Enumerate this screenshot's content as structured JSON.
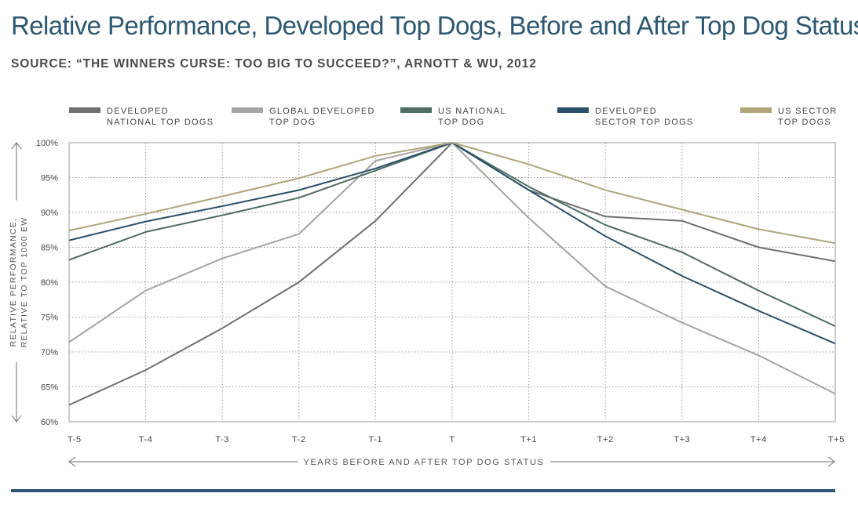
{
  "title": "Relative Performance, Developed Top Dogs, Before and After Top Dog Status",
  "subtitle": "SOURCE: “THE WINNERS CURSE: TOO BIG TO SUCCEED?”, ARNOTT & WU, 2012",
  "colors": {
    "developed_national": "#6f6f6f",
    "global_developed": "#a4a4a2",
    "us_national": "#4e6e62",
    "developed_sector": "#2a506c",
    "us_sector": "#b0a57a",
    "bottom_rule": "#2c5873"
  },
  "chart_data": {
    "type": "line",
    "x": [
      "T-5",
      "T-4",
      "T-3",
      "T-2",
      "T-1",
      "T",
      "T+1",
      "T+2",
      "T+3",
      "T+4",
      "T+5"
    ],
    "xlabel": "YEARS BEFORE AND AFTER TOP DOG STATUS",
    "ylabel": [
      "RELATIVE PERFORMANCE,",
      "RELATIVE TO TOP 1000 EW"
    ],
    "ylim": [
      60,
      100
    ],
    "yticks": [
      "100%",
      "95%",
      "90%",
      "85%",
      "80%",
      "75%",
      "70%",
      "65%",
      "60%"
    ],
    "grid": true,
    "legend_position": "top",
    "series": [
      {
        "name": [
          "DEVELOPED",
          "NATIONAL TOP DOGS"
        ],
        "color_key": "developed_national",
        "values": [
          62.4,
          67.4,
          73.4,
          80.0,
          88.8,
          100.0,
          93.2,
          89.4,
          88.8,
          85.0,
          83.0
        ]
      },
      {
        "name": [
          "GLOBAL DEVELOPED",
          "TOP DOG"
        ],
        "color_key": "global_developed",
        "values": [
          71.4,
          78.8,
          83.4,
          86.9,
          97.4,
          100.0,
          89.2,
          79.4,
          74.2,
          69.5,
          64.0
        ]
      },
      {
        "name": [
          "US NATIONAL",
          "TOP DOG"
        ],
        "color_key": "us_national",
        "values": [
          83.2,
          87.2,
          89.6,
          92.1,
          96.0,
          100.0,
          93.7,
          88.2,
          84.3,
          78.8,
          73.7
        ]
      },
      {
        "name": [
          "DEVELOPED",
          "SECTOR TOP DOGS"
        ],
        "color_key": "developed_sector",
        "values": [
          86.0,
          88.7,
          90.9,
          93.2,
          96.3,
          100.0,
          93.2,
          86.6,
          80.9,
          75.9,
          71.2
        ]
      },
      {
        "name": [
          "US SECTOR",
          "TOP DOGS"
        ],
        "color_key": "us_sector",
        "values": [
          87.4,
          89.8,
          92.3,
          94.9,
          98.1,
          100.0,
          96.9,
          93.2,
          90.4,
          87.6,
          85.6
        ]
      }
    ]
  }
}
